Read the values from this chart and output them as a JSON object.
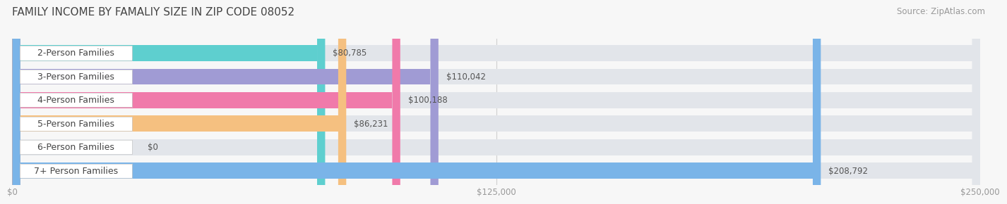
{
  "title": "FAMILY INCOME BY FAMALIY SIZE IN ZIP CODE 08052",
  "source": "Source: ZipAtlas.com",
  "categories": [
    "2-Person Families",
    "3-Person Families",
    "4-Person Families",
    "5-Person Families",
    "6-Person Families",
    "7+ Person Families"
  ],
  "values": [
    80785,
    110042,
    100188,
    86231,
    0,
    208792
  ],
  "bar_colors": [
    "#5ecfcf",
    "#a09bd4",
    "#f07aaa",
    "#f5c080",
    "#f5a8a8",
    "#7ab4e8"
  ],
  "value_labels": [
    "$80,785",
    "$110,042",
    "$100,188",
    "$86,231",
    "$0",
    "$208,792"
  ],
  "xlim": [
    0,
    250000
  ],
  "xtick_values": [
    0,
    125000,
    250000
  ],
  "xtick_labels": [
    "$0",
    "$125,000",
    "$250,000"
  ],
  "background_color": "#f7f7f7",
  "bar_bg_color": "#e2e5ea",
  "white_label_bg": "#ffffff",
  "title_fontsize": 11,
  "source_fontsize": 8.5,
  "label_fontsize": 9,
  "value_fontsize": 8.5,
  "grid_color": "#d0d0d0"
}
